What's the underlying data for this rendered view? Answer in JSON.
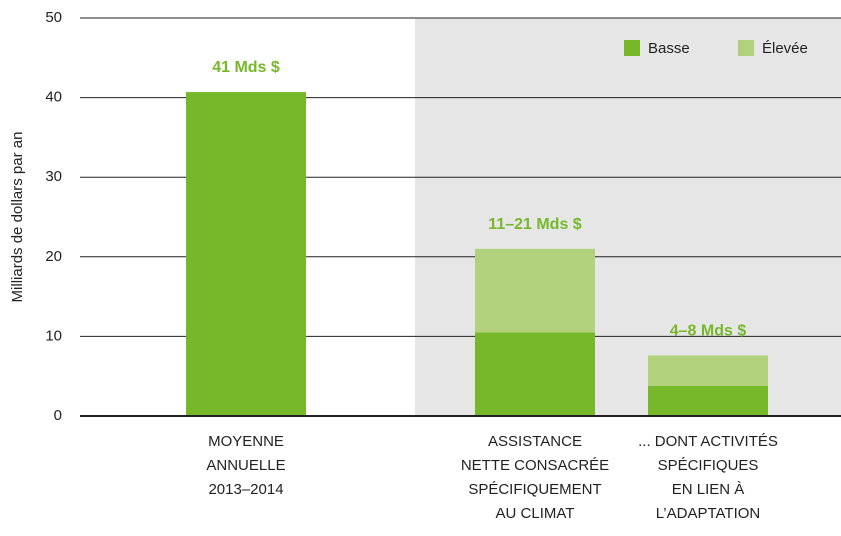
{
  "chart_data": {
    "type": "stacked_bar",
    "y_axis_label": "Milliards de dollars par an",
    "categories": [
      [
        "MOYENNE",
        "ANNUELLE",
        "2013–2014"
      ],
      [
        "ASSISTANCE",
        "NETTE CONSACRÉE",
        "SPÉCIFIQUEMENT",
        "AU CLIMAT"
      ],
      [
        "... DONT ACTIVITÉS",
        "SPÉCIFIQUES",
        "EN LIEN À",
        "L’ADAPTATION"
      ]
    ],
    "series": [
      {
        "name": "Basse",
        "color": "#76b82a",
        "values": [
          40.7,
          10.5,
          3.8
        ]
      },
      {
        "name": "Élevée",
        "color": "#b2d17c",
        "values": [
          null,
          10.5,
          3.8
        ]
      }
    ],
    "annotations": [
      "41 Mds $",
      "11–21 Mds $",
      "4–8 Mds $"
    ],
    "annotation_color": "#76b82a",
    "ylim": [
      0,
      50
    ],
    "yticks": [
      0,
      10,
      20,
      30,
      40,
      50
    ],
    "grid": true,
    "legend": "top-right"
  }
}
